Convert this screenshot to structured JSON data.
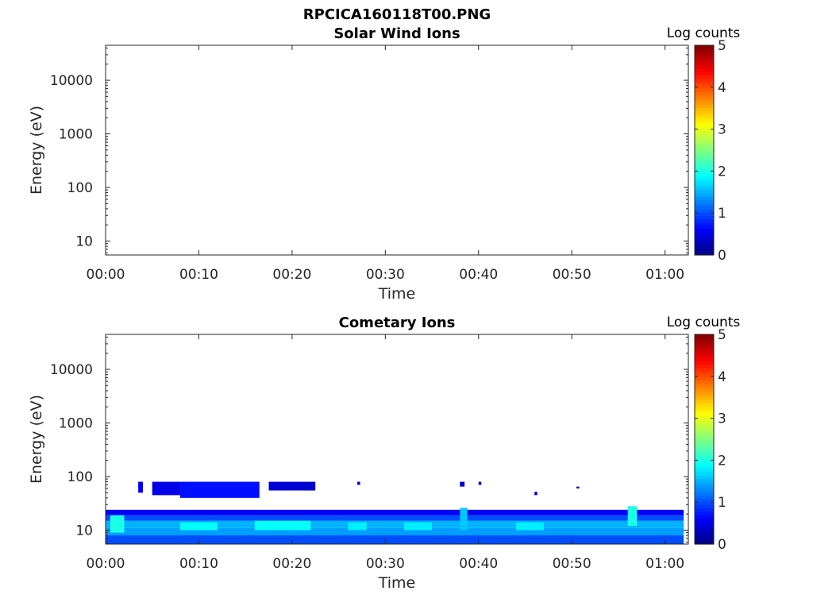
{
  "figure_title": "RPCICA160118T00.PNG",
  "chart_data": [
    {
      "type": "heatmap",
      "title": "Solar Wind Ions",
      "xlabel": "Time",
      "ylabel": "Energy (eV)",
      "x_ticks": [
        "00:00",
        "00:10",
        "00:20",
        "00:30",
        "00:40",
        "00:50",
        "01:00"
      ],
      "xlim_minutes": [
        0,
        62.5
      ],
      "y_ticks": [
        10,
        100,
        1000,
        10000
      ],
      "ylim": [
        5.5,
        45000
      ],
      "y_scale": "log",
      "colorbar": {
        "label": "Log counts",
        "ticks": [
          0,
          1,
          2,
          3,
          4,
          5
        ],
        "range": [
          0,
          5
        ],
        "colormap": "jet"
      },
      "data_description": "empty",
      "cells": []
    },
    {
      "type": "heatmap",
      "title": "Cometary Ions",
      "xlabel": "Time",
      "ylabel": "Energy (eV)",
      "x_ticks": [
        "00:00",
        "00:10",
        "00:20",
        "00:30",
        "00:40",
        "00:50",
        "01:00"
      ],
      "xlim_minutes": [
        0,
        62.5
      ],
      "y_ticks": [
        10,
        100,
        1000,
        10000
      ],
      "ylim": [
        5.5,
        45000
      ],
      "y_scale": "log",
      "colorbar": {
        "label": "Log counts",
        "ticks": [
          0,
          1,
          2,
          3,
          4,
          5
        ],
        "range": [
          0,
          5
        ],
        "colormap": "jet"
      },
      "cells": [
        {
          "t0": 0.0,
          "t1": 62.0,
          "e0": 5.5,
          "e1": 8,
          "logc": 1.0
        },
        {
          "t0": 0.0,
          "t1": 62.0,
          "e0": 8,
          "e1": 11,
          "logc": 1.4
        },
        {
          "t0": 0.0,
          "t1": 62.0,
          "e0": 11,
          "e1": 15,
          "logc": 1.5
        },
        {
          "t0": 0.0,
          "t1": 62.0,
          "e0": 15,
          "e1": 19,
          "logc": 1.0
        },
        {
          "t0": 0.0,
          "t1": 62.0,
          "e0": 19,
          "e1": 24,
          "logc": 0.6
        },
        {
          "t0": 0.5,
          "t1": 2.0,
          "e0": 9,
          "e1": 19,
          "logc": 2.0
        },
        {
          "t0": 8.0,
          "t1": 12.0,
          "e0": 10,
          "e1": 14,
          "logc": 1.9
        },
        {
          "t0": 16.0,
          "t1": 22.0,
          "e0": 10,
          "e1": 15,
          "logc": 1.9
        },
        {
          "t0": 26.0,
          "t1": 28.0,
          "e0": 10,
          "e1": 14,
          "logc": 1.8
        },
        {
          "t0": 32.0,
          "t1": 35.0,
          "e0": 10,
          "e1": 14,
          "logc": 1.8
        },
        {
          "t0": 38.0,
          "t1": 38.8,
          "e0": 10,
          "e1": 26,
          "logc": 1.6
        },
        {
          "t0": 44.0,
          "t1": 47.0,
          "e0": 10,
          "e1": 14,
          "logc": 1.8
        },
        {
          "t0": 56.0,
          "t1": 57.0,
          "e0": 12,
          "e1": 28,
          "logc": 2.0
        },
        {
          "t0": 3.5,
          "t1": 4.0,
          "e0": 50,
          "e1": 80,
          "logc": 0.6
        },
        {
          "t0": 5.0,
          "t1": 8.0,
          "e0": 45,
          "e1": 80,
          "logc": 0.5
        },
        {
          "t0": 8.0,
          "t1": 16.5,
          "e0": 40,
          "e1": 80,
          "logc": 0.7
        },
        {
          "t0": 17.5,
          "t1": 22.5,
          "e0": 55,
          "e1": 80,
          "logc": 0.4
        },
        {
          "t0": 27.0,
          "t1": 27.3,
          "e0": 70,
          "e1": 80,
          "logc": 0.4
        },
        {
          "t0": 38.0,
          "t1": 38.5,
          "e0": 65,
          "e1": 80,
          "logc": 0.4
        },
        {
          "t0": 40.0,
          "t1": 40.3,
          "e0": 70,
          "e1": 80,
          "logc": 0.4
        },
        {
          "t0": 46.0,
          "t1": 46.3,
          "e0": 45,
          "e1": 52,
          "logc": 0.4
        },
        {
          "t0": 50.5,
          "t1": 50.8,
          "e0": 60,
          "e1": 65,
          "logc": 0.4
        }
      ]
    }
  ]
}
